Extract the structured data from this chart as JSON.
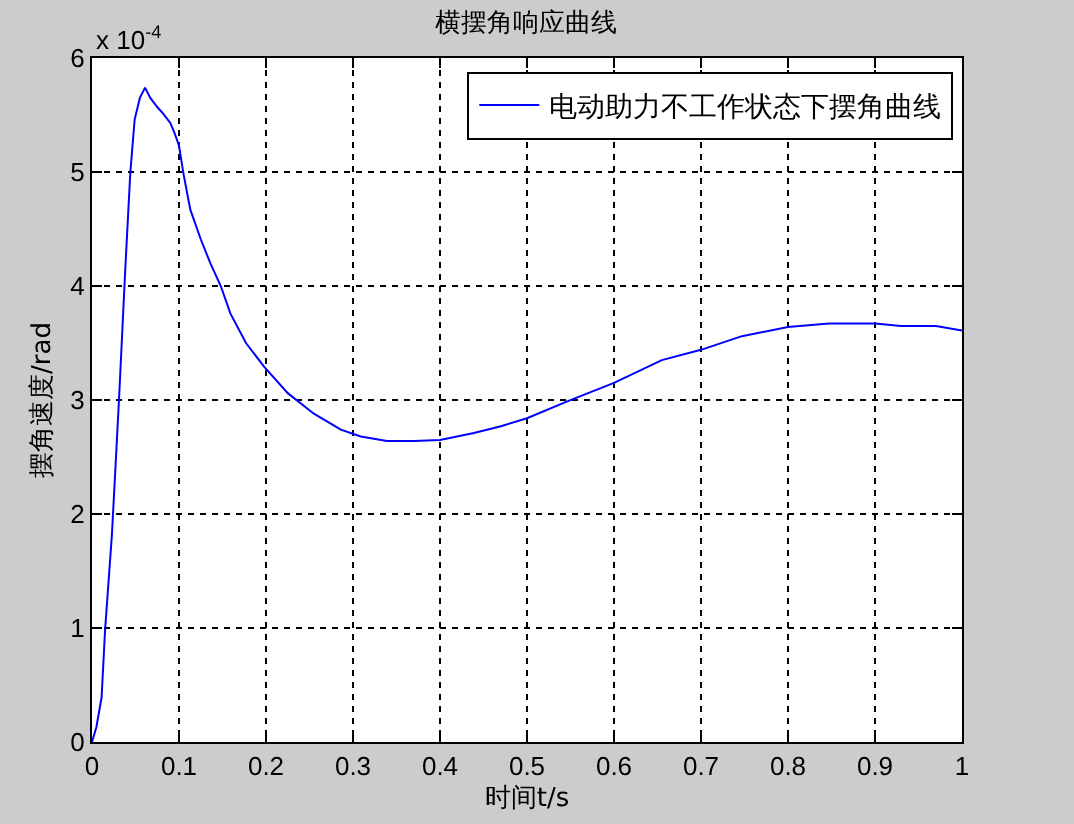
{
  "chart_data": {
    "type": "line",
    "title": "横摆角响应曲线",
    "xlabel": "时间t/s",
    "ylabel": "摆角速度/rad",
    "annotations": [
      "x 10$^{-4}$"
    ],
    "x": [
      0,
      0.005,
      0.011,
      0.015,
      0.023,
      0.031,
      0.038,
      0.044,
      0.049,
      0.055,
      0.061,
      0.067,
      0.075,
      0.082,
      0.09,
      0.095,
      0.1,
      0.105,
      0.113,
      0.125,
      0.136,
      0.148,
      0.159,
      0.177,
      0.198,
      0.225,
      0.255,
      0.286,
      0.309,
      0.339,
      0.37,
      0.4,
      0.439,
      0.47,
      0.5,
      0.547,
      0.6,
      0.655,
      0.7,
      0.747,
      0.8,
      0.847,
      0.9,
      0.93,
      0.97,
      1.0
    ],
    "series": [
      {
        "name": "电动助力不工作状态下摆角曲线",
        "color": "#0000ff",
        "values": [
          0,
          0.13,
          0.39,
          0.98,
          1.83,
          3.0,
          4.11,
          4.99,
          5.46,
          5.65,
          5.74,
          5.65,
          5.57,
          5.51,
          5.43,
          5.34,
          5.23,
          4.99,
          4.67,
          4.41,
          4.2,
          4.0,
          3.76,
          3.5,
          3.29,
          3.06,
          2.88,
          2.74,
          2.68,
          2.64,
          2.64,
          2.65,
          2.71,
          2.77,
          2.84,
          2.99,
          3.15,
          3.35,
          3.44,
          3.56,
          3.64,
          3.67,
          3.67,
          3.65,
          3.65,
          3.61
        ]
      }
    ],
    "xlim": [
      0,
      1
    ],
    "xticks": [
      0,
      0.1,
      0.2,
      0.3,
      0.4,
      0.5,
      0.6,
      0.7,
      0.8,
      0.9,
      1
    ],
    "ylim": [
      0,
      6
    ],
    "yticks": [
      0,
      1,
      2,
      3,
      4,
      5,
      6
    ],
    "grid": true,
    "legend": "top right"
  }
}
